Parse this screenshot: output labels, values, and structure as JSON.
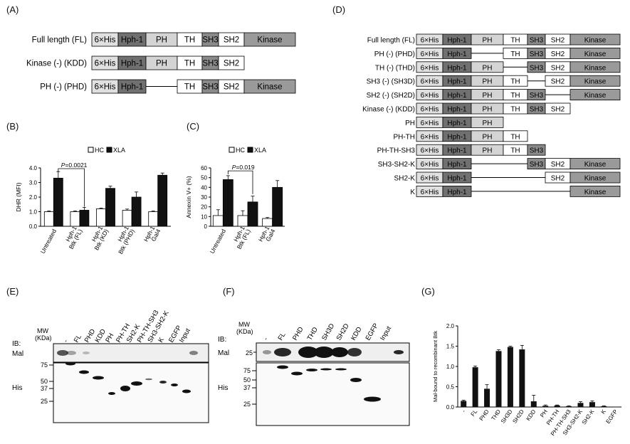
{
  "panels": {
    "A": {
      "label": "(A)",
      "rows": [
        {
          "name": "Full length (FL)",
          "segments": [
            "6×His",
            "Hph-1",
            "PH",
            "TH",
            "SH3",
            "SH2",
            "Kinase"
          ]
        },
        {
          "name": "Kinase (-) (KDD)",
          "segments": [
            "6×His",
            "Hph-1",
            "PH",
            "TH",
            "SH3",
            "SH2"
          ]
        },
        {
          "name": "PH (-) (PHD)",
          "segments": [
            "6×His",
            "Hph-1",
            "TH",
            "SH3",
            "SH2",
            "Kinase"
          ]
        }
      ]
    },
    "B": {
      "label": "(B)",
      "chart_data": {
        "type": "bar",
        "ylabel": "DHR (MFI)",
        "ylim": [
          0,
          4.0
        ],
        "yticks": [
          "0.0",
          "1.0",
          "2.0",
          "3.0",
          "4.0"
        ],
        "legend": [
          "HC",
          "XLA"
        ],
        "categories": [
          "Untreated",
          "Hph-1 Btk (FL)",
          "Hph-1 Btk (KD)",
          "Hph-1 Btk (PHD)",
          "Hph-1 Gal4"
        ],
        "series": [
          {
            "name": "HC",
            "values": [
              1.0,
              1.0,
              1.2,
              1.1,
              1.0
            ],
            "errors": [
              0.05,
              0.05,
              0.05,
              0.08,
              0.05
            ]
          },
          {
            "name": "XLA",
            "values": [
              3.3,
              1.1,
              2.6,
              2.0,
              3.5
            ],
            "errors": [
              0.45,
              0.2,
              0.15,
              0.35,
              0.15
            ]
          }
        ],
        "annotation": "P=0.0021"
      }
    },
    "C": {
      "label": "(C)",
      "chart_data": {
        "type": "bar",
        "ylabel": "Annexin V+ (%)",
        "ylim": [
          0,
          60
        ],
        "yticks": [
          "0",
          "10",
          "20",
          "30",
          "40",
          "50",
          "60"
        ],
        "legend": [
          "HC",
          "XLA"
        ],
        "categories": [
          "Untreated",
          "Hph-1 Btk (FL)",
          "Hph-1 Gal4"
        ],
        "series": [
          {
            "name": "HC",
            "values": [
              11,
              11,
              8
            ],
            "errors": [
              6,
              5,
              1
            ]
          },
          {
            "name": "XLA",
            "values": [
              48,
              25,
              40
            ],
            "errors": [
              4,
              6,
              7
            ]
          }
        ],
        "annotation": "P=0.019"
      }
    },
    "D": {
      "label": "(D)",
      "rows": [
        {
          "name": "Full length (FL)",
          "segments": [
            "6×His",
            "Hph-1",
            "PH",
            "TH",
            "SH3",
            "SH2",
            "Kinase"
          ]
        },
        {
          "name": "PH (-) (PHD)",
          "segments": [
            "6×His",
            "Hph-1",
            "TH",
            "SH3",
            "SH2",
            "Kinase"
          ]
        },
        {
          "name": "TH (-) (THD)",
          "segments": [
            "6×His",
            "Hph-1",
            "PH",
            "SH3",
            "SH2",
            "Kinase"
          ]
        },
        {
          "name": "SH3 (-) (SH3D)",
          "segments": [
            "6×His",
            "Hph-1",
            "PH",
            "TH",
            "SH2",
            "Kinase"
          ]
        },
        {
          "name": "SH2 (-) (SH2D)",
          "segments": [
            "6×His",
            "Hph-1",
            "PH",
            "TH",
            "SH3",
            "Kinase"
          ]
        },
        {
          "name": "Kinase (-) (KDD)",
          "segments": [
            "6×His",
            "Hph-1",
            "PH",
            "TH",
            "SH3",
            "SH2"
          ]
        },
        {
          "name": "PH",
          "segments": [
            "6×His",
            "Hph-1",
            "PH"
          ]
        },
        {
          "name": "PH-TH",
          "segments": [
            "6×His",
            "Hph-1",
            "PH",
            "TH"
          ]
        },
        {
          "name": "PH-TH-SH3",
          "segments": [
            "6×His",
            "Hph-1",
            "PH",
            "TH",
            "SH3"
          ]
        },
        {
          "name": "SH3-SH2-K",
          "segments": [
            "6×His",
            "Hph-1",
            "SH3",
            "SH2",
            "Kinase"
          ]
        },
        {
          "name": "SH2-K",
          "segments": [
            "6×His",
            "Hph-1",
            "SH2",
            "Kinase"
          ]
        },
        {
          "name": "K",
          "segments": [
            "6×His",
            "Hph-1",
            "Kinase"
          ]
        }
      ]
    },
    "E": {
      "label": "(E)",
      "ib": "IB:",
      "mw": "MW",
      "kda": "(KDa)",
      "lanes": [
        "-",
        "FL",
        "PHD",
        "KDD",
        "PH",
        "PH-TH",
        "SH2-K",
        "PH-TH-SH3",
        "SH3-SH2-K",
        "K",
        "EGFP",
        "Input"
      ],
      "blot_top": "Mal",
      "blot_bottom": "His",
      "markers": [
        "75",
        "50",
        "37",
        "25"
      ]
    },
    "F": {
      "label": "(F)",
      "ib": "IB:",
      "mw": "MW",
      "kda": "(KDa)",
      "lanes": [
        "-",
        "FL",
        "PHD",
        "THD",
        "SH3D",
        "SH2D",
        "KDD",
        "EGFP",
        "Input"
      ],
      "blot_top": "Mal",
      "blot_bottom": "His",
      "top_marker": "25",
      "markers": [
        "75",
        "50",
        "37",
        "25"
      ]
    },
    "G": {
      "label": "(G)",
      "chart_data": {
        "type": "bar",
        "ylabel": "Mal-bound to recombinant Btk",
        "ylim": [
          0,
          2.0
        ],
        "yticks": [
          "0.0",
          "0.5",
          "1.0",
          "1.5",
          "2.0"
        ],
        "categories": [
          "-",
          "FL",
          "PHD",
          "THD",
          "SH3D",
          "SH2D",
          "KDD",
          "PH",
          "PH-TH",
          "PH-TH-SH3",
          "SH3-SH2-K",
          "SH2-K",
          "K",
          "EGFP"
        ],
        "values": [
          0.15,
          0.98,
          0.45,
          1.38,
          1.48,
          1.42,
          0.14,
          0.03,
          0.04,
          0.02,
          0.1,
          0.12,
          0.02,
          0.0
        ],
        "errors": [
          0.02,
          0.03,
          0.1,
          0.03,
          0.02,
          0.1,
          0.15,
          0.02,
          0.01,
          0.01,
          0.03,
          0.03,
          0.01,
          0.0
        ]
      }
    }
  },
  "colors": {
    "his": "#e0e0e0",
    "hph": "#707070",
    "ph": "#d4d4d4",
    "th": "#ffffff",
    "sh3": "#8a8a8a",
    "sh2": "#ffffff",
    "kinase": "#9a9a9a",
    "hc": "#ffffff",
    "xla": "#111111"
  }
}
